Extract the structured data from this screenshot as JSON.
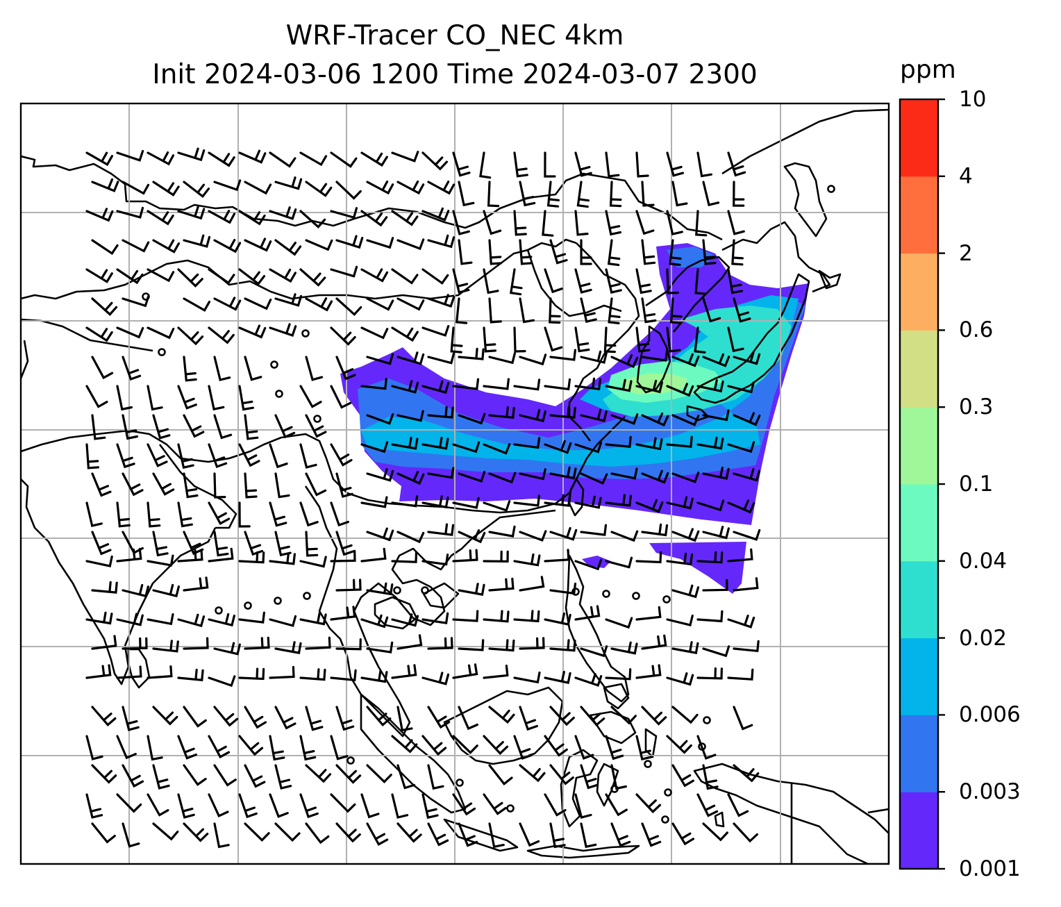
{
  "title": {
    "line1": "WRF-Tracer CO_NEC 4km",
    "line2": "Init 2024-03-06 1200 Time 2024-03-07 2300"
  },
  "colorbar": {
    "unit": "ppm",
    "levels": [
      "0.001",
      "0.003",
      "0.006",
      "0.02",
      "0.04",
      "0.1",
      "0.3",
      "0.6",
      "2",
      "4",
      "10"
    ],
    "colors": [
      "#6428fa",
      "#3176f0",
      "#02b4ea",
      "#2edfd0",
      "#6cfac0",
      "#a0f799",
      "#d2df85",
      "#feae61",
      "#ff6e3c",
      "#fc2b17"
    ]
  },
  "map": {
    "field": "CO_NEC tracer concentration",
    "overlay": "wind barbs",
    "gridlines": true,
    "coastlines": true
  }
}
